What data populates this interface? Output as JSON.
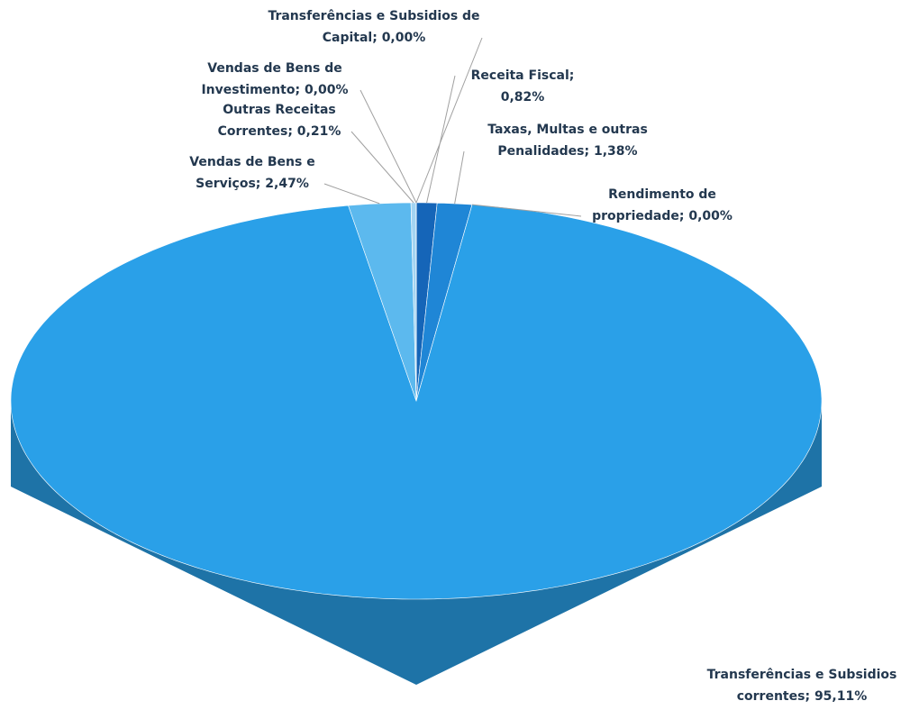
{
  "chart_data": {
    "type": "pie3d",
    "categories": [
      "Receita Fiscal",
      "Taxas, Multas e outras Penalidades",
      "Rendimento de propriedade",
      "Transferências e Subsidios correntes",
      "Vendas de Bens e Serviços",
      "Outras Receitas Correntes",
      "Vendas de Bens de Investimento",
      "Transferências e Subsidios de Capital"
    ],
    "values": [
      0.82,
      1.38,
      0.0,
      95.11,
      2.47,
      0.21,
      0.0,
      0.0
    ],
    "value_labels": [
      "0,82%",
      "1,38%",
      "0,00%",
      "95,11%",
      "2,47%",
      "0,21%",
      "0,00%",
      "0,00%"
    ],
    "colors": [
      "#1565b8",
      "#1f86d6",
      "#1f86d6",
      "#2aa0e8",
      "#5cb9ee",
      "#a3d4f2",
      "#c5e4f6",
      "#d8ecf8"
    ]
  }
}
